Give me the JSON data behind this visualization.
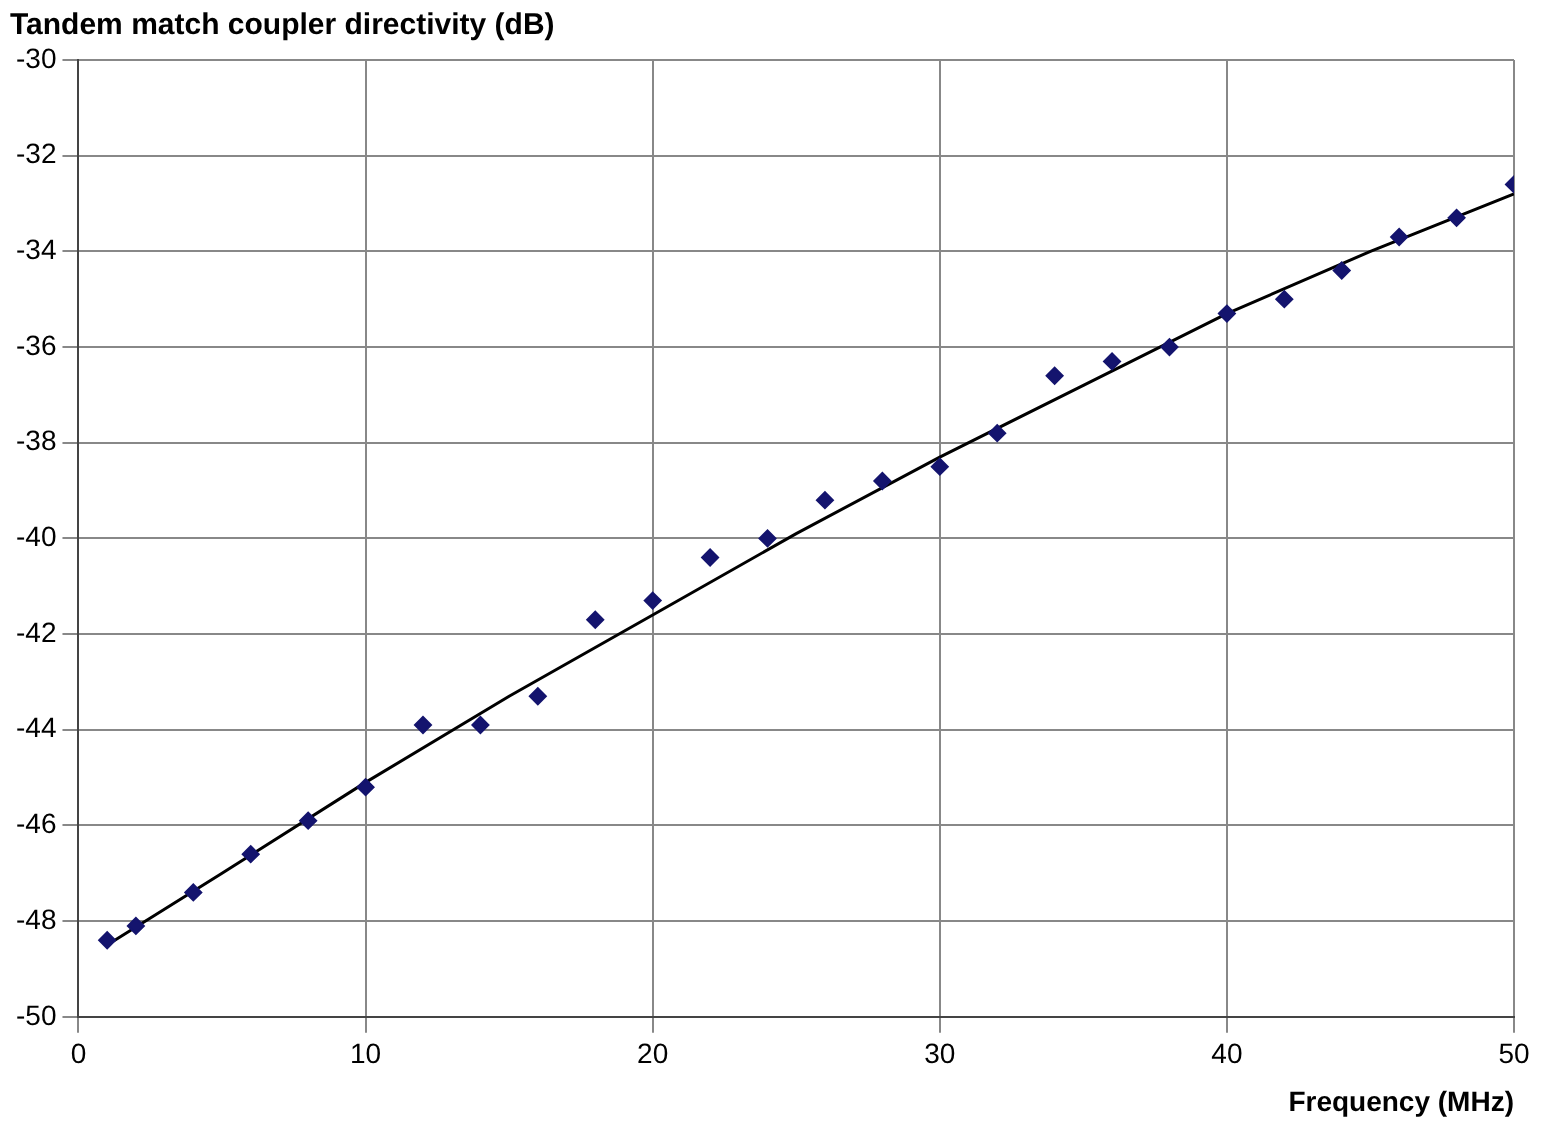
{
  "chart_data": {
    "type": "scatter",
    "title": "Tandem match coupler directivity (dB)",
    "xlabel": "Frequency (MHz)",
    "xlim": [
      0,
      50
    ],
    "xticks": [
      0,
      10,
      20,
      30,
      40,
      50
    ],
    "ylim": [
      -50,
      -30
    ],
    "yticks": [
      -50,
      -48,
      -46,
      -44,
      -42,
      -40,
      -38,
      -36,
      -34,
      -32,
      -30
    ],
    "grid": true,
    "legend": false,
    "marker": "diamond",
    "series": [
      {
        "color": "#14146e",
        "x": [
          1,
          2,
          4,
          6,
          8,
          10,
          12,
          14,
          16,
          18,
          20,
          22,
          24,
          26,
          28,
          30,
          32,
          34,
          36,
          38,
          40,
          42,
          44,
          46,
          48,
          50
        ],
        "values": [
          -48.4,
          -48.1,
          -47.4,
          -46.6,
          -45.9,
          -45.2,
          -43.9,
          -43.9,
          -43.3,
          -41.7,
          -41.3,
          -40.4,
          -40.0,
          -39.2,
          -38.8,
          -38.5,
          -37.8,
          -36.6,
          -36.3,
          -36.0,
          -35.3,
          -35.0,
          -34.4,
          -33.7,
          -33.3,
          -32.6
        ]
      },
      {
        "type": "line",
        "color": "#000000",
        "marker": "none",
        "x": [
          1,
          5,
          10,
          15,
          20,
          25,
          30,
          35,
          40,
          45,
          50
        ],
        "values": [
          -48.5,
          -47.0,
          -45.1,
          -43.3,
          -41.6,
          -39.9,
          -38.3,
          -36.8,
          -35.3,
          -34.0,
          -32.8
        ]
      }
    ]
  }
}
